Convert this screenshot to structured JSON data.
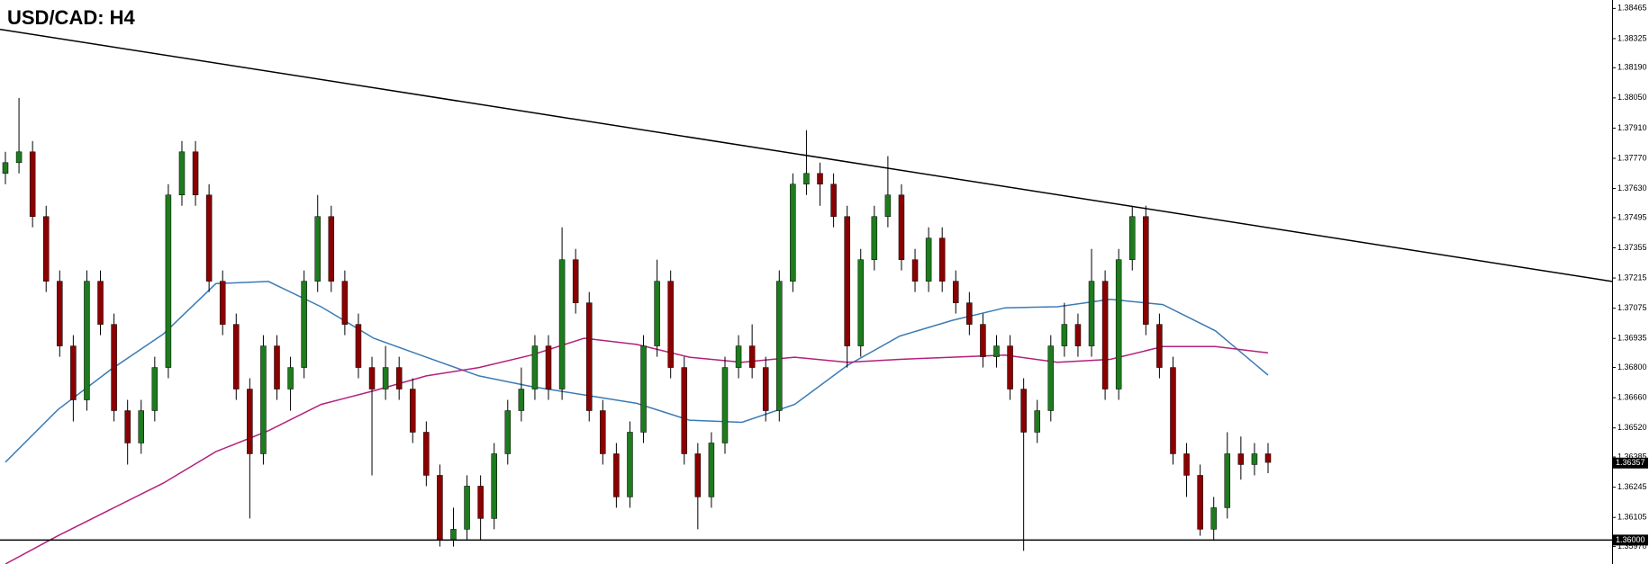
{
  "chart_data": {
    "type": "candlestick",
    "title": "USD/CAD: H4",
    "ylim": [
      1.35889,
      1.38504
    ],
    "yticks": [
      {
        "value": 1.38465,
        "label": "1.38465"
      },
      {
        "value": 1.38325,
        "label": "1.38325"
      },
      {
        "value": 1.3819,
        "label": "1.38190"
      },
      {
        "value": 1.3805,
        "label": "1.38050"
      },
      {
        "value": 1.3791,
        "label": "1.37910"
      },
      {
        "value": 1.3777,
        "label": "1.37770"
      },
      {
        "value": 1.3763,
        "label": "1.37630"
      },
      {
        "value": 1.37495,
        "label": "1.37495"
      },
      {
        "value": 1.37355,
        "label": "1.37355"
      },
      {
        "value": 1.37215,
        "label": "1.37215"
      },
      {
        "value": 1.37075,
        "label": "1.37075"
      },
      {
        "value": 1.36935,
        "label": "1.36935"
      },
      {
        "value": 1.368,
        "label": "1.36800"
      },
      {
        "value": 1.3666,
        "label": "1.36660"
      },
      {
        "value": 1.3652,
        "label": "1.36520"
      },
      {
        "value": 1.36385,
        "label": "1.36385"
      },
      {
        "value": 1.36245,
        "label": "1.36245"
      },
      {
        "value": 1.36105,
        "label": "1.36105"
      },
      {
        "value": 1.3597,
        "label": "1.35970"
      }
    ],
    "up_color": "#1e7b1e",
    "down_color": "#8b0000",
    "wick_color": "#000000",
    "candles": [
      [
        1.377,
        1.378,
        1.3765,
        1.3775
      ],
      [
        1.3775,
        1.3805,
        1.377,
        1.378
      ],
      [
        1.378,
        1.3785,
        1.3745,
        1.375
      ],
      [
        1.375,
        1.3755,
        1.3715,
        1.372
      ],
      [
        1.372,
        1.3725,
        1.3685,
        1.369
      ],
      [
        1.369,
        1.3695,
        1.3655,
        1.3665
      ],
      [
        1.3665,
        1.3725,
        1.366,
        1.372
      ],
      [
        1.372,
        1.3725,
        1.3695,
        1.37
      ],
      [
        1.37,
        1.3705,
        1.3655,
        1.366
      ],
      [
        1.366,
        1.3665,
        1.3635,
        1.3645
      ],
      [
        1.3645,
        1.3665,
        1.364,
        1.366
      ],
      [
        1.366,
        1.3685,
        1.3655,
        1.368
      ],
      [
        1.368,
        1.3765,
        1.3675,
        1.376
      ],
      [
        1.376,
        1.3785,
        1.3755,
        1.378
      ],
      [
        1.378,
        1.3785,
        1.3755,
        1.376
      ],
      [
        1.376,
        1.3765,
        1.3715,
        1.372
      ],
      [
        1.372,
        1.3725,
        1.3695,
        1.37
      ],
      [
        1.37,
        1.3705,
        1.3665,
        1.367
      ],
      [
        1.367,
        1.3675,
        1.361,
        1.364
      ],
      [
        1.364,
        1.3695,
        1.3635,
        1.369
      ],
      [
        1.369,
        1.3695,
        1.3665,
        1.367
      ],
      [
        1.367,
        1.3685,
        1.366,
        1.368
      ],
      [
        1.368,
        1.3725,
        1.3675,
        1.372
      ],
      [
        1.372,
        1.376,
        1.3715,
        1.375
      ],
      [
        1.375,
        1.3755,
        1.3715,
        1.372
      ],
      [
        1.372,
        1.3725,
        1.3695,
        1.37
      ],
      [
        1.37,
        1.3705,
        1.3675,
        1.368
      ],
      [
        1.368,
        1.3685,
        1.363,
        1.367
      ],
      [
        1.367,
        1.369,
        1.3665,
        1.368
      ],
      [
        1.368,
        1.3685,
        1.3665,
        1.367
      ],
      [
        1.367,
        1.3675,
        1.3645,
        1.365
      ],
      [
        1.365,
        1.3655,
        1.3625,
        1.363
      ],
      [
        1.363,
        1.3635,
        1.3597,
        1.36
      ],
      [
        1.36,
        1.3615,
        1.3597,
        1.3605
      ],
      [
        1.3605,
        1.363,
        1.36,
        1.3625
      ],
      [
        1.3625,
        1.363,
        1.36,
        1.361
      ],
      [
        1.361,
        1.3645,
        1.3605,
        1.364
      ],
      [
        1.364,
        1.3665,
        1.3635,
        1.366
      ],
      [
        1.366,
        1.368,
        1.3655,
        1.367
      ],
      [
        1.367,
        1.3695,
        1.3665,
        1.369
      ],
      [
        1.369,
        1.3695,
        1.3665,
        1.367
      ],
      [
        1.367,
        1.3745,
        1.3665,
        1.373
      ],
      [
        1.373,
        1.3735,
        1.3705,
        1.371
      ],
      [
        1.371,
        1.3715,
        1.3655,
        1.366
      ],
      [
        1.366,
        1.3665,
        1.3635,
        1.364
      ],
      [
        1.364,
        1.3645,
        1.3615,
        1.362
      ],
      [
        1.362,
        1.3655,
        1.3615,
        1.365
      ],
      [
        1.365,
        1.3695,
        1.3645,
        1.369
      ],
      [
        1.369,
        1.373,
        1.3685,
        1.372
      ],
      [
        1.372,
        1.3725,
        1.3675,
        1.368
      ],
      [
        1.368,
        1.3685,
        1.3635,
        1.364
      ],
      [
        1.364,
        1.3645,
        1.3605,
        1.362
      ],
      [
        1.362,
        1.365,
        1.3615,
        1.3645
      ],
      [
        1.3645,
        1.3685,
        1.364,
        1.368
      ],
      [
        1.368,
        1.3695,
        1.3675,
        1.369
      ],
      [
        1.369,
        1.37,
        1.3675,
        1.368
      ],
      [
        1.368,
        1.3685,
        1.3655,
        1.366
      ],
      [
        1.366,
        1.3725,
        1.3655,
        1.372
      ],
      [
        1.372,
        1.377,
        1.3715,
        1.3765
      ],
      [
        1.3765,
        1.379,
        1.376,
        1.377
      ],
      [
        1.377,
        1.3775,
        1.3755,
        1.3765
      ],
      [
        1.3765,
        1.377,
        1.3745,
        1.375
      ],
      [
        1.375,
        1.3755,
        1.368,
        1.369
      ],
      [
        1.369,
        1.3735,
        1.3685,
        1.373
      ],
      [
        1.373,
        1.3755,
        1.3725,
        1.375
      ],
      [
        1.375,
        1.3778,
        1.3745,
        1.376
      ],
      [
        1.376,
        1.3765,
        1.3725,
        1.373
      ],
      [
        1.373,
        1.3735,
        1.3715,
        1.372
      ],
      [
        1.372,
        1.3745,
        1.3715,
        1.374
      ],
      [
        1.374,
        1.3745,
        1.3715,
        1.372
      ],
      [
        1.372,
        1.3725,
        1.3705,
        1.371
      ],
      [
        1.371,
        1.3715,
        1.3695,
        1.37
      ],
      [
        1.37,
        1.3705,
        1.368,
        1.3685
      ],
      [
        1.3685,
        1.3695,
        1.368,
        1.369
      ],
      [
        1.369,
        1.3695,
        1.3665,
        1.367
      ],
      [
        1.367,
        1.3675,
        1.3595,
        1.365
      ],
      [
        1.365,
        1.3665,
        1.3645,
        1.366
      ],
      [
        1.366,
        1.3695,
        1.3655,
        1.369
      ],
      [
        1.369,
        1.371,
        1.3685,
        1.37
      ],
      [
        1.37,
        1.3705,
        1.3685,
        1.369
      ],
      [
        1.369,
        1.3735,
        1.3685,
        1.372
      ],
      [
        1.372,
        1.3725,
        1.3665,
        1.367
      ],
      [
        1.367,
        1.3735,
        1.3665,
        1.373
      ],
      [
        1.373,
        1.3755,
        1.3725,
        1.375
      ],
      [
        1.375,
        1.3755,
        1.3695,
        1.37
      ],
      [
        1.37,
        1.3705,
        1.3675,
        1.368
      ],
      [
        1.368,
        1.3685,
        1.3635,
        1.364
      ],
      [
        1.364,
        1.3645,
        1.362,
        1.363
      ],
      [
        1.363,
        1.3635,
        1.3602,
        1.3605
      ],
      [
        1.3605,
        1.362,
        1.36,
        1.3615
      ],
      [
        1.3615,
        1.365,
        1.361,
        1.364
      ],
      [
        1.364,
        1.3648,
        1.3628,
        1.3635
      ],
      [
        1.3635,
        1.3645,
        1.363,
        1.364
      ],
      [
        1.364,
        1.3645,
        1.3631,
        1.3636
      ]
    ],
    "moving_averages": [
      {
        "color": "#3b7bb5",
        "values": [
          1.36361,
          1.36605,
          1.3679,
          1.36955,
          1.37189,
          1.37199,
          1.37082,
          1.36936,
          1.36848,
          1.36761,
          1.36712,
          1.36673,
          1.36634,
          1.36556,
          1.36546,
          1.36629,
          1.36809,
          1.36946,
          1.37019,
          1.37077,
          1.37082,
          1.37116,
          1.37092,
          1.3697,
          1.36765
        ]
      },
      {
        "color": "#b3207c",
        "values": [
          1.35889,
          1.3602,
          1.36142,
          1.36264,
          1.3641,
          1.36507,
          1.36629,
          1.36692,
          1.36761,
          1.368,
          1.36858,
          1.36936,
          1.36907,
          1.36848,
          1.36824,
          1.36848,
          1.36824,
          1.36838,
          1.36848,
          1.36858,
          1.36824,
          1.36838,
          1.36897,
          1.36897,
          1.36868
        ]
      }
    ],
    "trendline": {
      "color": "#000000",
      "values": [
        1.38368,
        1.37199
      ]
    },
    "level": {
      "value": 1.36,
      "label": "1.36000"
    },
    "last_price": {
      "value": 1.36357,
      "label": "1.36357"
    }
  }
}
